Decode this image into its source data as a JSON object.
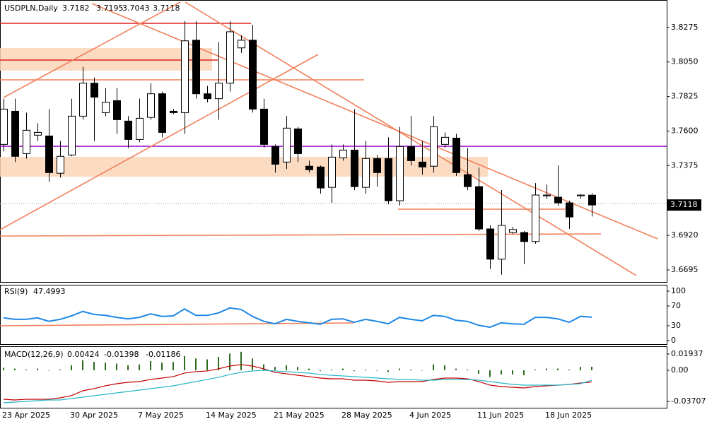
{
  "chart_data": [
    {
      "type": "candlestick",
      "title": "USDPLN,Daily",
      "categories": [
        "23 Apr 2025",
        null,
        null,
        null,
        null,
        null,
        "30 Apr 2025",
        null,
        null,
        null,
        null,
        null,
        "7 May 2025",
        null,
        null,
        null,
        null,
        null,
        "14 May 2025",
        null,
        null,
        null,
        null,
        null,
        "21 May 2025",
        null,
        null,
        null,
        null,
        null,
        "28 May 2025",
        null,
        null,
        null,
        null,
        null,
        "4 Jun 2025",
        null,
        null,
        null,
        null,
        null,
        "11 Jun 2025",
        null,
        null,
        null,
        null,
        null,
        "18 Jun 2025",
        null,
        null,
        null,
        null
      ],
      "open": [
        3.7513,
        3.7729,
        3.7453,
        3.7573,
        3.7568,
        3.7325,
        3.7444,
        3.7697,
        3.7912,
        3.772,
        3.7798,
        3.7665,
        3.7545,
        3.7689,
        3.7843,
        3.7729,
        3.772,
        3.8192,
        3.7843,
        3.7811,
        3.7912,
        3.8142,
        3.8192,
        3.7743,
        3.7499,
        3.7398,
        3.7614,
        3.7371,
        3.7366,
        3.7233,
        3.7426,
        3.7476,
        3.7233,
        3.7421,
        3.7421,
        3.7146,
        3.7499,
        3.7398,
        3.7371,
        3.7513,
        3.7554,
        3.7316,
        3.7238,
        3.6962,
        3.6765,
        3.6939,
        3.6939,
        3.688,
        3.7178,
        3.7169,
        3.7132,
        3.7178,
        3.7182
      ],
      "high": [
        3.7811,
        3.7811,
        3.772,
        3.7651,
        3.7743,
        3.7536,
        3.7811,
        3.8018,
        3.7949,
        3.788,
        3.788,
        3.7697,
        3.7811,
        3.7912,
        3.7857,
        3.7743,
        3.8316,
        3.8316,
        3.7894,
        3.8179,
        3.8316,
        3.8224,
        3.8293,
        3.7811,
        3.7513,
        3.7697,
        3.7628,
        3.7407,
        3.7375,
        3.7513,
        3.7513,
        3.7743,
        3.7536,
        3.7444,
        3.7559,
        3.7628,
        3.7697,
        3.7536,
        3.7697,
        3.7591,
        3.7582,
        3.749,
        3.7362,
        3.6985,
        3.7215,
        3.6976,
        3.6948,
        3.7261,
        3.7251,
        3.7375,
        3.7146,
        3.7187,
        3.7195
      ],
      "low": [
        3.7467,
        3.7398,
        3.7421,
        3.7536,
        3.727,
        3.7297,
        3.7435,
        3.7674,
        3.7536,
        3.7697,
        3.7582,
        3.749,
        3.7527,
        3.7674,
        3.7559,
        3.771,
        3.7582,
        3.7811,
        3.7788,
        3.7674,
        3.7857,
        3.811,
        3.772,
        3.749,
        3.7329,
        3.7352,
        3.7398,
        3.7329,
        3.7192,
        3.7132,
        3.7407,
        3.7215,
        3.7192,
        3.7238,
        3.7123,
        3.7114,
        3.7375,
        3.7316,
        3.7329,
        3.749,
        3.7307,
        3.7215,
        3.6948,
        3.6701,
        3.6664,
        3.693,
        3.6733,
        3.6866,
        3.716,
        3.7114,
        3.6962,
        3.716,
        3.7043
      ],
      "close": [
        3.7743,
        3.7435,
        3.7605,
        3.7591,
        3.7329,
        3.7435,
        3.7697,
        3.7912,
        3.7821,
        3.7788,
        3.7674,
        3.7545,
        3.7683,
        3.7843,
        3.7591,
        3.772,
        3.8188,
        3.7843,
        3.7811,
        3.7912,
        3.8247,
        3.8192,
        3.7743,
        3.7513,
        3.7384,
        3.7619,
        3.7453,
        3.7348,
        3.7229,
        3.743,
        3.7476,
        3.7238,
        3.7421,
        3.7329,
        3.7146,
        3.7499,
        3.7407,
        3.7366,
        3.7628,
        3.7559,
        3.7329,
        3.7238,
        3.6962,
        3.6765,
        3.6985,
        3.6958,
        3.688,
        3.7183,
        3.7183,
        3.7132,
        3.704,
        3.7183,
        3.7118
      ],
      "up_color": "#ffffff",
      "down_color": "#000000",
      "ylim": [
        3.6612,
        3.8454
      ],
      "yticks": [
        3.8275,
        {
          "value": 3.805,
          "label": "3.8050"
        },
        3.7825,
        {
          "value": 3.76,
          "label": "3.7600"
        },
        3.7375,
        {
          "value": 3.692,
          "label": "3.6920"
        },
        3.6695
      ]
    },
    {
      "type": "line",
      "title": "RSI(9)",
      "series": [
        {
          "color": "#1e88e5",
          "values": [
            46,
            43,
            43,
            46,
            39,
            43,
            50,
            59,
            53,
            51,
            47,
            44,
            47,
            54,
            49,
            50,
            64,
            51,
            51,
            56,
            66,
            63,
            49,
            39,
            34,
            43,
            39,
            36,
            33,
            43,
            44,
            37,
            43,
            39,
            34,
            47,
            43,
            40,
            51,
            49,
            41,
            39,
            31,
            27,
            36,
            34,
            33,
            47,
            47,
            44,
            37,
            49,
            47.4993
          ]
        }
      ],
      "ylim": [
        -8.6,
        112.9
      ],
      "yticks": [
        100,
        70,
        30,
        0
      ]
    },
    {
      "type": "combo",
      "title": "MACD(12,26,9)",
      "series": [
        {
          "kind": "bar",
          "color": "#2e6b1f",
          "values": [
            0.003,
            0.002,
            0.001,
            0.002,
            0,
            0.001,
            0.006,
            0.012,
            0.01,
            0.009,
            0.008,
            0.006,
            0.007,
            0.011,
            0.009,
            0.01,
            0.017,
            0.014,
            0.013,
            0.016,
            0.02,
            0.022,
            0.014,
            0.007,
            0.004,
            0.006,
            0.004,
            0.002,
            -0.001,
            0.001,
            0.002,
            -0.001,
            0.001,
            0,
            -0.002,
            0.002,
            0.001,
            0,
            0.007,
            0.006,
            0.002,
            0.001,
            -0.004,
            -0.008,
            -0.005,
            -0.005,
            -0.006,
            0.001,
            0.002,
            0.002,
            0.001,
            0.004,
            0.00424
          ]
        },
        {
          "kind": "line",
          "color": "#c00000",
          "values": [
            -0.03454,
            -0.03538,
            -0.03454,
            -0.03454,
            -0.03454,
            -0.03286,
            -0.03033,
            -0.02443,
            -0.0219,
            -0.01853,
            -0.01601,
            -0.01432,
            -0.01348,
            -0.01095,
            -0.00927,
            -0.00758,
            -0.00337,
            -0.00168,
            -0.00084,
            0.00168,
            0.00505,
            0.00674,
            0.00505,
            0.00168,
            -0.00253,
            -0.00421,
            -0.0059,
            -0.00758,
            -0.00927,
            -0.01011,
            -0.01011,
            -0.01179,
            -0.01179,
            -0.01264,
            -0.01432,
            -0.01348,
            -0.01348,
            -0.01348,
            -0.01095,
            -0.00927,
            -0.00927,
            -0.01011,
            -0.01348,
            -0.01769,
            -0.01938,
            -0.02022,
            -0.02106,
            -0.01938,
            -0.01853,
            -0.01769,
            -0.01685,
            -0.01516,
            -0.01398
          ]
        },
        {
          "kind": "line",
          "color": "#26b5c8",
          "values": [
            -0.03875,
            -0.03791,
            -0.03707,
            -0.03623,
            -0.03538,
            -0.03538,
            -0.0337,
            -0.03201,
            -0.03033,
            -0.02864,
            -0.02696,
            -0.02527,
            -0.02359,
            -0.0219,
            -0.02022,
            -0.01853,
            -0.01601,
            -0.01348,
            -0.01095,
            -0.00842,
            -0.00505,
            -0.00253,
            -0.00084,
            0,
            -0.00084,
            -0.00168,
            -0.00253,
            -0.00337,
            -0.00505,
            -0.0059,
            -0.00674,
            -0.00758,
            -0.00842,
            -0.00927,
            -0.01011,
            -0.01095,
            -0.01095,
            -0.01179,
            -0.01179,
            -0.01095,
            -0.01095,
            -0.01095,
            -0.01179,
            -0.01348,
            -0.01516,
            -0.01685,
            -0.01769,
            -0.01769,
            -0.01769,
            -0.01769,
            -0.01685,
            -0.01601,
            -0.01186
          ]
        }
      ],
      "ylim": [
        -0.0455,
        0.0286
      ],
      "yticks": [
        0.01937,
        {
          "value": 0,
          "label": "0.00"
        },
        -0.03707
      ]
    }
  ]
}
